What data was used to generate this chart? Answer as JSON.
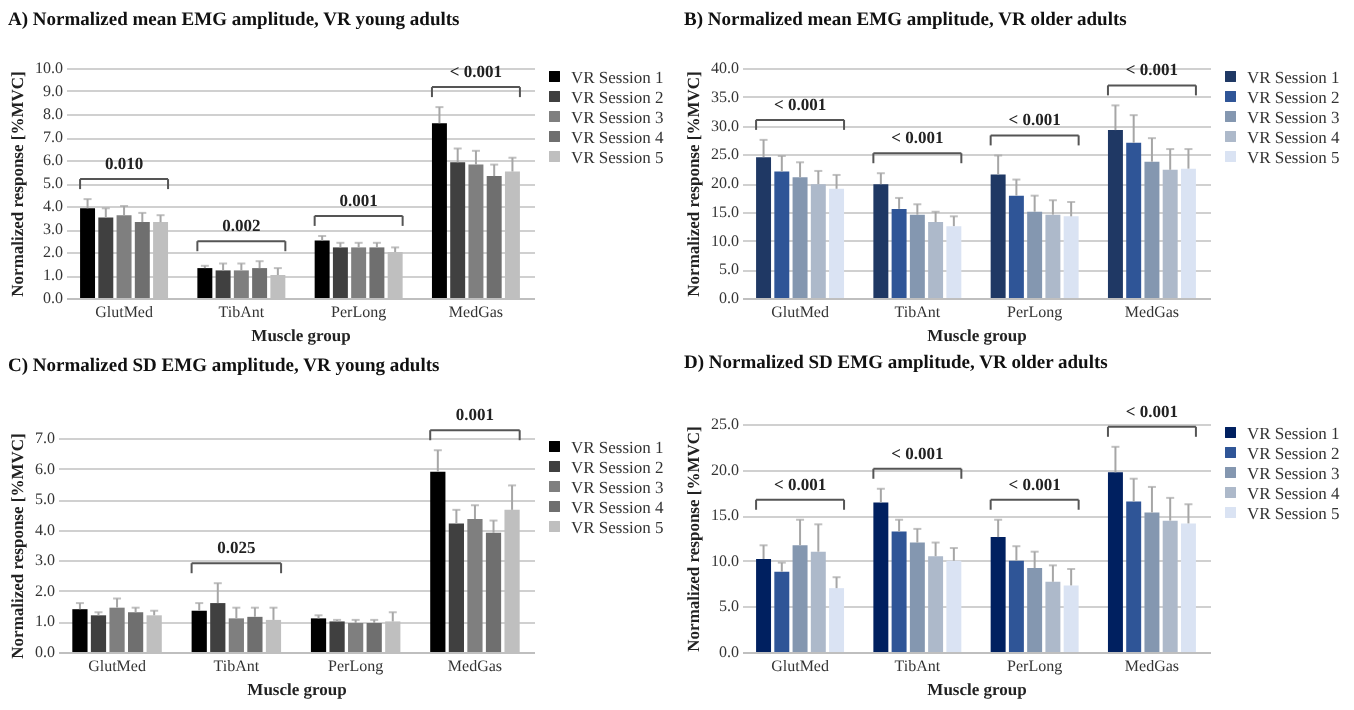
{
  "chart_data": [
    {
      "type": "bar",
      "title": "A) Normalized mean EMG amplitude, VR young adults",
      "xlabel": "Muscle group",
      "ylabel": "Normalized response [%MVC]",
      "categories": [
        "GlutMed",
        "TibAnt",
        "PerLong",
        "MedGas"
      ],
      "series": [
        {
          "name": "VR Session 1",
          "color": "#000000",
          "values": [
            3.9,
            1.3,
            2.5,
            7.6
          ],
          "errors": [
            [
              3.9,
              4.3
            ],
            [
              1.3,
              1.4
            ],
            [
              2.5,
              2.7
            ],
            [
              7.6,
              8.3
            ]
          ]
        },
        {
          "name": "VR Session 2",
          "color": "#404040",
          "values": [
            3.5,
            1.2,
            2.2,
            5.9
          ],
          "errors": [
            [
              3.5,
              3.9
            ],
            [
              1.2,
              1.5
            ],
            [
              2.2,
              2.4
            ],
            [
              5.9,
              6.5
            ]
          ]
        },
        {
          "name": "VR Session 3",
          "color": "#7f7f7f",
          "values": [
            3.6,
            1.2,
            2.2,
            5.8
          ],
          "errors": [
            [
              3.6,
              4.0
            ],
            [
              1.2,
              1.5
            ],
            [
              2.2,
              2.4
            ],
            [
              5.8,
              6.4
            ]
          ]
        },
        {
          "name": "VR Session 4",
          "color": "#6f6f6f",
          "values": [
            3.3,
            1.3,
            2.2,
            5.3
          ],
          "errors": [
            [
              3.3,
              3.7
            ],
            [
              1.3,
              1.6
            ],
            [
              2.2,
              2.4
            ],
            [
              5.3,
              5.8
            ]
          ]
        },
        {
          "name": "VR Session 5",
          "color": "#bfbfbf",
          "values": [
            3.3,
            1.0,
            2.0,
            5.5
          ],
          "errors": [
            [
              3.3,
              3.6
            ],
            [
              1.0,
              1.3
            ],
            [
              2.0,
              2.2
            ],
            [
              5.5,
              6.1
            ]
          ]
        }
      ],
      "ylim": [
        0,
        10
      ],
      "yticks": [
        {
          "value": 0,
          "label": "0.0"
        },
        {
          "value": 1,
          "label": "1.0"
        },
        {
          "value": 2,
          "label": "2.0"
        },
        {
          "value": 3,
          "label": "3.0"
        },
        {
          "value": 4,
          "label": "4.0"
        },
        {
          "value": 5,
          "label": "5.0"
        },
        {
          "value": 6,
          "label": "6.0"
        },
        {
          "value": 7,
          "label": "7.0"
        },
        {
          "value": 8,
          "label": "8.0"
        },
        {
          "value": 9,
          "label": "9.0"
        },
        {
          "value": 10,
          "label": "10.0"
        }
      ],
      "grid": "y",
      "legend": "right",
      "annotations": [
        "0.010",
        "0.002",
        "0.001",
        "< 0.001"
      ]
    },
    {
      "type": "bar",
      "title": "B) Normalized mean EMG amplitude, VR older adults",
      "xlabel": "Muscle group",
      "ylabel": "Normalized response [%MVC]",
      "categories": [
        "GlutMed",
        "TibAnt",
        "PerLong",
        "MedGas"
      ],
      "series": [
        {
          "name": "VR Session 1",
          "color": "#1f3864",
          "values": [
            24.5,
            19.8,
            21.5,
            29.2
          ],
          "errors": [
            [
              24.5,
              27.5
            ],
            [
              19.8,
              21.7
            ],
            [
              21.5,
              24.8
            ],
            [
              29.2,
              33.5
            ]
          ]
        },
        {
          "name": "VR Session 2",
          "color": "#2f5597",
          "values": [
            22.0,
            15.5,
            17.8,
            27.0
          ],
          "errors": [
            [
              22.0,
              24.7
            ],
            [
              15.5,
              17.4
            ],
            [
              17.8,
              20.6
            ],
            [
              27.0,
              31.8
            ]
          ]
        },
        {
          "name": "VR Session 3",
          "color": "#8497b0",
          "values": [
            21.0,
            14.5,
            15.0,
            23.7
          ],
          "errors": [
            [
              21.0,
              23.6
            ],
            [
              14.5,
              16.3
            ],
            [
              15.0,
              17.8
            ],
            [
              23.7,
              27.8
            ]
          ]
        },
        {
          "name": "VR Session 4",
          "color": "#adb9ca",
          "values": [
            19.8,
            13.2,
            14.5,
            22.3
          ],
          "errors": [
            [
              19.8,
              22.1
            ],
            [
              13.2,
              15.0
            ],
            [
              14.5,
              17.0
            ],
            [
              22.3,
              25.9
            ]
          ]
        },
        {
          "name": "VR Session 5",
          "color": "#dae3f3",
          "values": [
            19.0,
            12.5,
            14.2,
            22.5
          ],
          "errors": [
            [
              19.0,
              21.4
            ],
            [
              12.5,
              14.2
            ],
            [
              14.2,
              16.7
            ],
            [
              22.5,
              25.9
            ]
          ]
        }
      ],
      "ylim": [
        0,
        40
      ],
      "yticks": [
        {
          "value": 0,
          "label": "0.0"
        },
        {
          "value": 5,
          "label": "5.0"
        },
        {
          "value": 10,
          "label": "10.0"
        },
        {
          "value": 15,
          "label": "15.0"
        },
        {
          "value": 20,
          "label": "20.0"
        },
        {
          "value": 25,
          "label": "25.0"
        },
        {
          "value": 30,
          "label": "30.0"
        },
        {
          "value": 35,
          "label": "35.0"
        },
        {
          "value": 40,
          "label": "40.0"
        }
      ],
      "grid": "y",
      "legend": "right",
      "annotations": [
        "< 0.001",
        "< 0.001",
        "< 0.001",
        "< 0.001"
      ]
    },
    {
      "type": "bar",
      "title": "C) Normalized SD EMG amplitude, VR young adults",
      "xlabel": "Muscle group",
      "ylabel": "Normalized response [%MVC]",
      "categories": [
        "GlutMed",
        "TibAnt",
        "PerLong",
        "MedGas"
      ],
      "series": [
        {
          "name": "VR Session 1",
          "color": "#000000",
          "values": [
            1.4,
            1.35,
            1.1,
            5.9
          ],
          "errors": [
            [
              1.4,
              1.6
            ],
            [
              1.35,
              1.6
            ],
            [
              1.1,
              1.2
            ],
            [
              5.9,
              6.6
            ]
          ]
        },
        {
          "name": "VR Session 2",
          "color": "#404040",
          "values": [
            1.2,
            1.6,
            1.0,
            4.2
          ],
          "errors": [
            [
              1.2,
              1.3
            ],
            [
              1.6,
              2.25
            ],
            [
              1.0,
              1.05
            ],
            [
              4.2,
              4.65
            ]
          ]
        },
        {
          "name": "VR Session 3",
          "color": "#7f7f7f",
          "values": [
            1.45,
            1.1,
            0.95,
            4.35
          ],
          "errors": [
            [
              1.45,
              1.75
            ],
            [
              1.1,
              1.45
            ],
            [
              0.95,
              1.05
            ],
            [
              4.35,
              4.8
            ]
          ]
        },
        {
          "name": "VR Session 4",
          "color": "#6f6f6f",
          "values": [
            1.3,
            1.15,
            0.95,
            3.9
          ],
          "errors": [
            [
              1.3,
              1.45
            ],
            [
              1.15,
              1.45
            ],
            [
              0.95,
              1.05
            ],
            [
              3.9,
              4.3
            ]
          ]
        },
        {
          "name": "VR Session 5",
          "color": "#bfbfbf",
          "values": [
            1.2,
            1.05,
            1.0,
            4.65
          ],
          "errors": [
            [
              1.2,
              1.35
            ],
            [
              1.05,
              1.45
            ],
            [
              1.0,
              1.3
            ],
            [
              4.65,
              5.45
            ]
          ]
        }
      ],
      "ylim": [
        0,
        7
      ],
      "yticks": [
        {
          "value": 0,
          "label": "0.0"
        },
        {
          "value": 1,
          "label": "1.0"
        },
        {
          "value": 2,
          "label": "2.0"
        },
        {
          "value": 3,
          "label": "3.0"
        },
        {
          "value": 4,
          "label": "4.0"
        },
        {
          "value": 5,
          "label": "5.0"
        },
        {
          "value": 6,
          "label": "6.0"
        },
        {
          "value": 7,
          "label": "7.0"
        }
      ],
      "grid": "y",
      "legend": "right",
      "annotations": [
        "0.025",
        "0.001"
      ]
    },
    {
      "type": "bar",
      "title": "D) Normalized SD EMG amplitude, VR older adults",
      "xlabel": "Muscle group",
      "ylabel": "Normalized response [%MVC]",
      "categories": [
        "GlutMed",
        "TibAnt",
        "PerLong",
        "MedGas"
      ],
      "series": [
        {
          "name": "VR Session 1",
          "color": "#002060",
          "values": [
            10.2,
            16.4,
            12.6,
            19.7
          ],
          "errors": [
            [
              10.2,
              11.7
            ],
            [
              16.4,
              17.9
            ],
            [
              12.6,
              14.5
            ],
            [
              19.7,
              22.5
            ]
          ]
        },
        {
          "name": "VR Session 2",
          "color": "#2f5597",
          "values": [
            8.8,
            13.2,
            10.0,
            16.5
          ],
          "errors": [
            [
              8.8,
              9.8
            ],
            [
              13.2,
              14.5
            ],
            [
              10.0,
              11.6
            ],
            [
              16.5,
              19.0
            ]
          ]
        },
        {
          "name": "VR Session 3",
          "color": "#8497b0",
          "values": [
            11.7,
            12.0,
            9.2,
            15.3
          ],
          "errors": [
            [
              11.7,
              14.5
            ],
            [
              12.0,
              13.5
            ],
            [
              9.2,
              11.0
            ],
            [
              15.3,
              18.1
            ]
          ]
        },
        {
          "name": "VR Session 4",
          "color": "#adb9ca",
          "values": [
            11.0,
            10.5,
            7.7,
            14.4
          ],
          "errors": [
            [
              11.0,
              14.0
            ],
            [
              10.5,
              12.0
            ],
            [
              7.7,
              9.5
            ],
            [
              14.4,
              16.9
            ]
          ]
        },
        {
          "name": "VR Session 5",
          "color": "#dae3f3",
          "values": [
            7.0,
            10.0,
            7.3,
            14.1
          ],
          "errors": [
            [
              7.0,
              8.2
            ],
            [
              10.0,
              11.4
            ],
            [
              7.3,
              9.1
            ],
            [
              14.1,
              16.2
            ]
          ]
        }
      ],
      "ylim": [
        0,
        25
      ],
      "yticks": [
        {
          "value": 0,
          "label": "0.0"
        },
        {
          "value": 5,
          "label": "5.0"
        },
        {
          "value": 10,
          "label": "10.0"
        },
        {
          "value": 15,
          "label": "15.0"
        },
        {
          "value": 20,
          "label": "20.0"
        },
        {
          "value": 25,
          "label": "25.0"
        }
      ],
      "grid": "y",
      "legend": "right",
      "annotations": [
        "< 0.001",
        "< 0.001",
        "< 0.001",
        "< 0.001"
      ]
    }
  ]
}
